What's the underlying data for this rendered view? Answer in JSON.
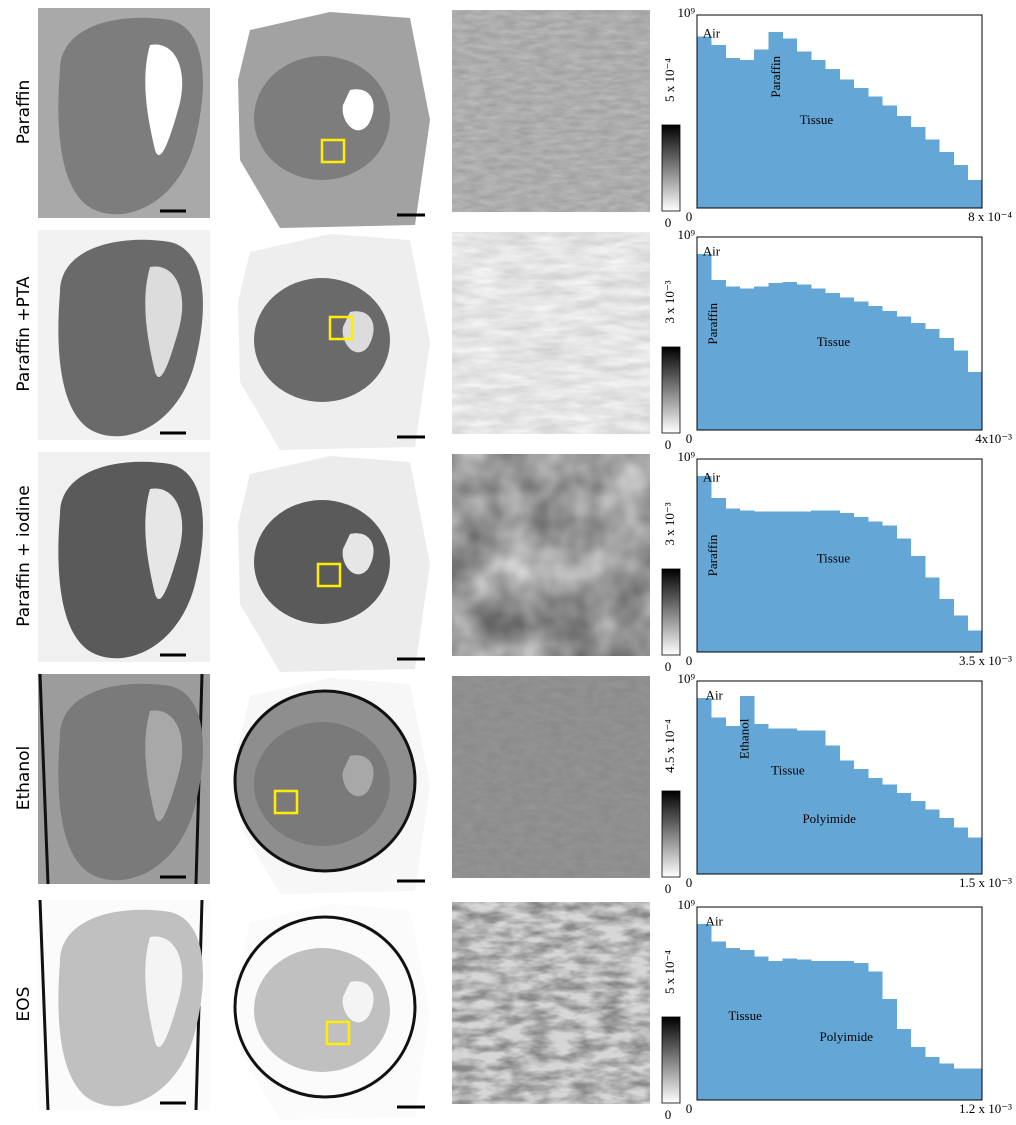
{
  "chart_data": [
    {
      "type": "histogram",
      "color": "#64a7d6",
      "log_y": true,
      "bins": [
        0,
        4e-05,
        8e-05,
        0.00012,
        0.00016,
        0.0002,
        0.00024,
        0.00028,
        0.00032,
        0.00036,
        0.0004,
        0.00044,
        0.00048,
        0.00052,
        0.00056,
        0.0006,
        0.00064,
        0.00068,
        0.00072,
        0.00076,
        0.0008
      ],
      "values": [
        100000000.0,
        40000000.0,
        10000000.0,
        8000000.0,
        25000000.0,
        160000000.0,
        80000000.0,
        20000000.0,
        8000000.0,
        3000000.0,
        1000000.0,
        400000.0,
        160000.0,
        60000.0,
        20000.0,
        6000.0,
        1600.0,
        400,
        100,
        20
      ],
      "xlim": [
        0,
        0.0008
      ],
      "xticks": [
        0,
        {
          "value": 0.0008,
          "label": "8 x 10⁻⁴"
        }
      ],
      "ylim": [
        1,
        1000000000.0
      ],
      "yticks": [
        {
          "value": 1000000000.0,
          "label": "10⁹"
        }
      ],
      "annotations": [
        "Air",
        "Paraffin",
        "Tissue"
      ]
    },
    {
      "type": "histogram",
      "color": "#64a7d6",
      "log_y": true,
      "bins": [
        0,
        0.0002,
        0.0004,
        0.0006,
        0.0008,
        0.001,
        0.0012,
        0.0014,
        0.0016,
        0.0018,
        0.002,
        0.0022,
        0.0024,
        0.0026,
        0.0028,
        0.003,
        0.0032,
        0.0034,
        0.0036,
        0.0038,
        0.004
      ],
      "values": [
        160000000.0,
        10000000.0,
        5000000.0,
        4000000.0,
        5000000.0,
        7000000.0,
        8000000.0,
        6000000.0,
        4000000.0,
        2500000.0,
        1500000.0,
        1000000.0,
        600000.0,
        350000.0,
        200000.0,
        100000.0,
        50000.0,
        20000.0,
        5000.0,
        500
      ],
      "xlim": [
        0,
        0.004
      ],
      "xticks": [
        0,
        {
          "value": 0.004,
          "label": "4x10⁻³"
        }
      ],
      "ylim": [
        1,
        1000000000.0
      ],
      "yticks": [
        {
          "value": 1000000000.0,
          "label": "10⁹"
        }
      ],
      "annotations": [
        "Air",
        "Paraffin",
        "Tissue"
      ]
    },
    {
      "type": "histogram",
      "color": "#64a7d6",
      "log_y": true,
      "bins": [
        0,
        0.000175,
        0.00035,
        0.000525,
        0.0007,
        0.000875,
        0.00105,
        0.001225,
        0.0014,
        0.001575,
        0.00175,
        0.001925,
        0.0021,
        0.002275,
        0.00245,
        0.002625,
        0.0028,
        0.002975,
        0.00315,
        0.003325,
        0.0035
      ],
      "values": [
        160000000.0,
        15000000.0,
        5000000.0,
        4000000.0,
        3500000.0,
        3500000.0,
        3500000.0,
        3500000.0,
        4000000.0,
        4000000.0,
        3000000.0,
        2000000.0,
        1200000.0,
        800000.0,
        200000.0,
        30000.0,
        3000.0,
        300,
        50,
        10
      ],
      "xlim": [
        0,
        0.0035
      ],
      "xticks": [
        0,
        {
          "value": 0.0035,
          "label": "3.5 x 10⁻³"
        }
      ],
      "ylim": [
        1,
        1000000000.0
      ],
      "yticks": [
        {
          "value": 1000000000.0,
          "label": "10⁹"
        }
      ],
      "annotations": [
        "Air",
        "Paraffin",
        "Tissue"
      ]
    },
    {
      "type": "histogram",
      "color": "#64a7d6",
      "log_y": true,
      "bins": [
        0,
        7.5e-05,
        0.00015,
        0.000225,
        0.0003,
        0.000375,
        0.00045,
        0.000525,
        0.0006,
        0.000675,
        0.00075,
        0.000825,
        0.0009,
        0.000975,
        0.00105,
        0.001125,
        0.0012,
        0.001275,
        0.00135,
        0.001425,
        0.0015
      ],
      "values": [
        160000000.0,
        20000000.0,
        8000000.0,
        200000000.0,
        10000000.0,
        6000000.0,
        6000000.0,
        5000000.0,
        5000000.0,
        1000000.0,
        200000.0,
        80000.0,
        30000.0,
        15000.0,
        6000.0,
        2500.0,
        1000.0,
        400,
        150,
        50
      ],
      "xlim": [
        0,
        0.0015
      ],
      "xticks": [
        0,
        {
          "value": 0.0015,
          "label": "1.5 x 10⁻³"
        }
      ],
      "ylim": [
        1,
        1000000000.0
      ],
      "yticks": [
        {
          "value": 1000000000.0,
          "label": "10⁹"
        }
      ],
      "annotations": [
        "Air",
        "Ethanol",
        "Tissue",
        "Polyimide"
      ]
    },
    {
      "type": "histogram",
      "color": "#64a7d6",
      "log_y": true,
      "bins": [
        0,
        6e-05,
        0.00012,
        0.00018,
        0.00024,
        0.0003,
        0.00036,
        0.00042,
        0.00048,
        0.00054,
        0.0006,
        0.00066,
        0.00072,
        0.00078,
        0.00084,
        0.0009,
        0.00096,
        0.00102,
        0.00108,
        0.00114,
        0.0012
      ],
      "values": [
        160000000.0,
        25000000.0,
        12000000.0,
        10000000.0,
        5000000.0,
        3000000.0,
        4000000.0,
        3500000.0,
        3000000.0,
        3000000.0,
        3000000.0,
        2500000.0,
        1000000.0,
        50000.0,
        2000.0,
        300,
        100,
        50,
        30,
        30
      ],
      "xlim": [
        0,
        0.0012
      ],
      "xticks": [
        0,
        {
          "value": 0.0012,
          "label": "1.2 x 10⁻³"
        }
      ],
      "ylim": [
        1,
        1000000000.0
      ],
      "yticks": [
        {
          "value": 1000000000.0,
          "label": "10⁹"
        }
      ],
      "annotations": [
        "Air",
        "Tissue",
        "Polyimide"
      ]
    }
  ],
  "rows": [
    {
      "label": "Paraffin",
      "colorbar_max": "5 x 10⁻⁴",
      "colorbar_min": "0"
    },
    {
      "label": "Paraffin +PTA",
      "colorbar_max": "3 x 10⁻³",
      "colorbar_min": "0"
    },
    {
      "label": "Paraffin + iodine",
      "colorbar_max": "3 x 10⁻³",
      "colorbar_min": "0"
    },
    {
      "label": "Ethanol",
      "colorbar_max": "4.5 x 10⁻⁴",
      "colorbar_min": "0"
    },
    {
      "label": "EOS",
      "colorbar_max": "5 x 10⁻⁴",
      "colorbar_min": "0"
    }
  ]
}
